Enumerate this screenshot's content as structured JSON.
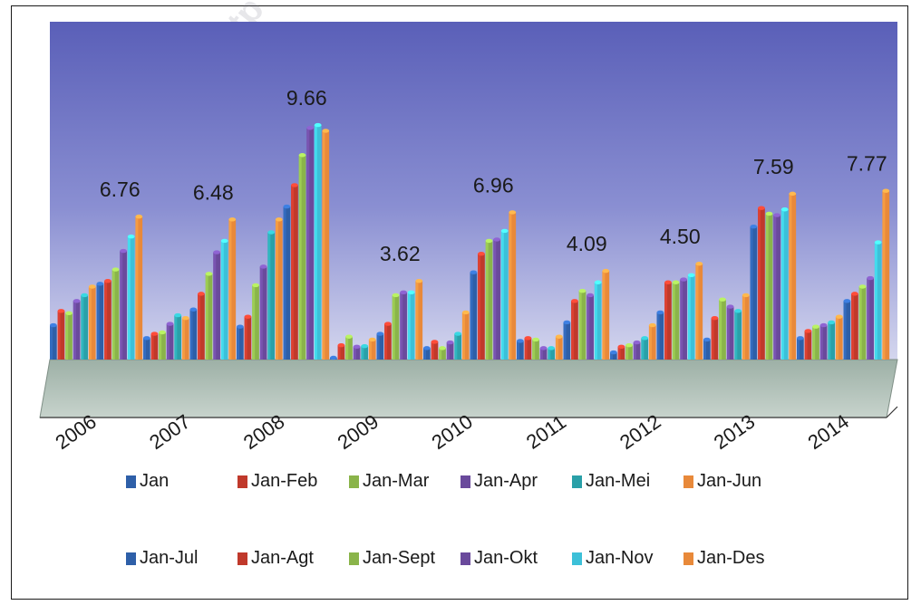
{
  "chart_data": {
    "type": "bar",
    "categories": [
      "2006",
      "2007",
      "2008",
      "2009",
      "2010",
      "2011",
      "2012",
      "2013",
      "2014"
    ],
    "series": [
      {
        "name": "Jan",
        "color": "#2e5fa8",
        "values": [
          1.2,
          0.75,
          1.15,
          0.05,
          0.4,
          0.65,
          0.25,
          0.7,
          0.75
        ]
      },
      {
        "name": "Jan-Feb",
        "color": "#c0392b",
        "values": [
          1.7,
          0.9,
          1.5,
          0.5,
          0.62,
          0.75,
          0.45,
          1.45,
          1.0
        ]
      },
      {
        "name": "Jan-Mar",
        "color": "#8ab44a",
        "values": [
          1.62,
          0.95,
          2.6,
          0.8,
          0.4,
          0.7,
          0.5,
          2.1,
          1.15
        ]
      },
      {
        "name": "Jan-Apr",
        "color": "#6a4a9c",
        "values": [
          2.05,
          1.25,
          3.25,
          0.45,
          0.6,
          0.4,
          0.6,
          1.85,
          1.2
        ]
      },
      {
        "name": "Jan-Mei",
        "color": "#2aa0a8",
        "values": [
          2.25,
          1.55,
          4.45,
          0.47,
          0.9,
          0.4,
          0.75,
          1.7,
          1.3
        ]
      },
      {
        "name": "Jan-Jun",
        "color": "#e8893a",
        "values": [
          2.55,
          1.45,
          4.9,
          0.7,
          1.65,
          0.8,
          1.2,
          2.25,
          1.5
        ]
      },
      {
        "name": "Jan-Jul",
        "color": "#2e5fa8",
        "values": [
          2.65,
          1.75,
          5.35,
          0.9,
          3.05,
          1.3,
          1.65,
          4.65,
          2.05
        ]
      },
      {
        "name": "Jan-Agt",
        "color": "#c0392b",
        "values": [
          2.75,
          2.3,
          6.1,
          1.25,
          3.7,
          2.05,
          2.7,
          5.3,
          2.3
        ]
      },
      {
        "name": "Jan-Sept",
        "color": "#8ab44a",
        "values": [
          3.15,
          3.0,
          7.15,
          2.25,
          4.15,
          2.4,
          2.7,
          5.1,
          2.55
        ]
      },
      {
        "name": "Jan-Okt",
        "color": "#6a4a9c",
        "values": [
          3.8,
          3.75,
          8.1,
          2.35,
          4.2,
          2.25,
          2.8,
          5.05,
          2.85
        ]
      },
      {
        "name": "Jan-Nov",
        "color": "#3cc0d8",
        "values": [
          4.3,
          4.15,
          8.2,
          2.35,
          4.5,
          2.7,
          2.95,
          5.25,
          4.1
        ]
      },
      {
        "name": "Jan-Des",
        "color": "#e8893a",
        "values": [
          5.0,
          4.9,
          8.0,
          2.75,
          5.15,
          3.1,
          3.35,
          5.8,
          5.9
        ]
      }
    ],
    "data_labels": [
      {
        "category": "2006",
        "text": "6.76"
      },
      {
        "category": "2007",
        "text": "6.48"
      },
      {
        "category": "2008",
        "text": "9.66"
      },
      {
        "category": "2009",
        "text": "3.62"
      },
      {
        "category": "2010",
        "text": "6.96"
      },
      {
        "category": "2011",
        "text": "4.09"
      },
      {
        "category": "2012",
        "text": "4.50"
      },
      {
        "category": "2013",
        "text": "7.59"
      },
      {
        "category": "2014",
        "text": "7.77"
      }
    ],
    "legend_position": "bottom",
    "background_color": "#6e73c0",
    "floor_color": "#aebfb4",
    "grid": false
  },
  "watermark": "http"
}
